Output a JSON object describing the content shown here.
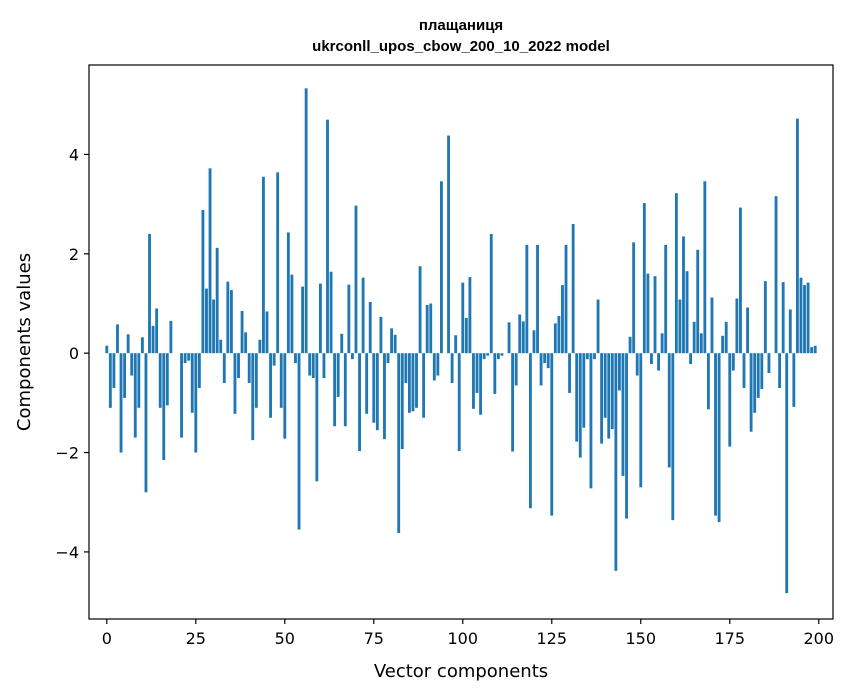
{
  "chart_data": {
    "type": "bar",
    "title_line1": "плащаниця",
    "title_line2": "ukrconll_upos_cbow_200_10_2022 model",
    "xlabel": "Vector components",
    "ylabel": "Components values",
    "xlim": [
      -5,
      204
    ],
    "ylim": [
      -5.35,
      5.8
    ],
    "xticks": [
      0,
      25,
      50,
      75,
      100,
      125,
      150,
      175,
      200
    ],
    "yticks": [
      -4,
      -2,
      0,
      2,
      4
    ],
    "ytick_labels": [
      "−4",
      "−2",
      "0",
      "2",
      "4"
    ],
    "bar_color": "#1f77b4",
    "values": [
      0.15,
      -1.1,
      -0.7,
      0.58,
      -2.0,
      -0.9,
      0.38,
      -0.45,
      -1.7,
      -1.1,
      0.32,
      -2.8,
      2.4,
      0.55,
      0.9,
      -1.1,
      -2.15,
      -1.05,
      0.65,
      0.0,
      0.0,
      -1.7,
      -0.2,
      -0.15,
      -1.2,
      -2.0,
      -0.7,
      2.88,
      1.3,
      3.72,
      1.08,
      2.12,
      0.27,
      -0.6,
      1.44,
      1.27,
      -1.22,
      -0.5,
      0.85,
      0.42,
      -0.6,
      -1.75,
      -1.1,
      0.27,
      3.55,
      0.84,
      -1.3,
      -0.25,
      3.64,
      -1.1,
      -1.72,
      2.43,
      1.58,
      -0.2,
      -3.55,
      1.34,
      5.33,
      -0.45,
      -0.5,
      -2.58,
      1.4,
      -0.5,
      4.7,
      1.64,
      -1.47,
      -0.88,
      0.39,
      -1.47,
      1.38,
      -0.12,
      2.97,
      -1.97,
      1.52,
      -1.22,
      1.03,
      -1.4,
      -1.55,
      0.73,
      -1.73,
      -0.2,
      0.5,
      0.37,
      -3.62,
      -1.93,
      -0.6,
      -1.2,
      -1.17,
      -1.1,
      1.75,
      -1.3,
      0.97,
      1.0,
      -0.55,
      -0.45,
      3.46,
      0.0,
      4.38,
      -0.6,
      0.36,
      -1.97,
      1.42,
      0.71,
      1.53,
      -1.12,
      -0.8,
      -1.24,
      -0.12,
      -0.05,
      2.4,
      -0.82,
      -0.12,
      -0.05,
      0.0,
      0.62,
      -1.98,
      -0.65,
      0.78,
      0.64,
      2.18,
      -3.12,
      0.46,
      2.18,
      -0.65,
      -0.2,
      -0.3,
      -3.27,
      0.6,
      0.75,
      1.37,
      2.18,
      -0.8,
      2.6,
      -1.78,
      -2.1,
      -1.5,
      -0.12,
      -2.72,
      -0.12,
      1.08,
      -1.82,
      -1.3,
      -1.72,
      -1.53,
      -4.38,
      -0.75,
      -2.47,
      -3.33,
      0.33,
      2.23,
      -0.45,
      -2.7,
      3.02,
      1.6,
      -0.22,
      1.55,
      -0.35,
      0.4,
      2.18,
      -2.3,
      -3.36,
      3.22,
      1.08,
      2.35,
      1.65,
      -0.22,
      0.63,
      2.08,
      0.4,
      3.46,
      -1.13,
      1.12,
      -3.27,
      -3.4,
      0.35,
      0.63,
      -1.88,
      -0.35,
      1.1,
      2.93,
      -0.7,
      0.92,
      -1.58,
      -1.2,
      -0.9,
      -0.72,
      1.45,
      -0.4,
      0.0,
      3.16,
      -0.7,
      1.43,
      -4.83,
      0.88,
      -1.08,
      4.72,
      1.52,
      1.37,
      1.42,
      0.12,
      0.15
    ]
  }
}
